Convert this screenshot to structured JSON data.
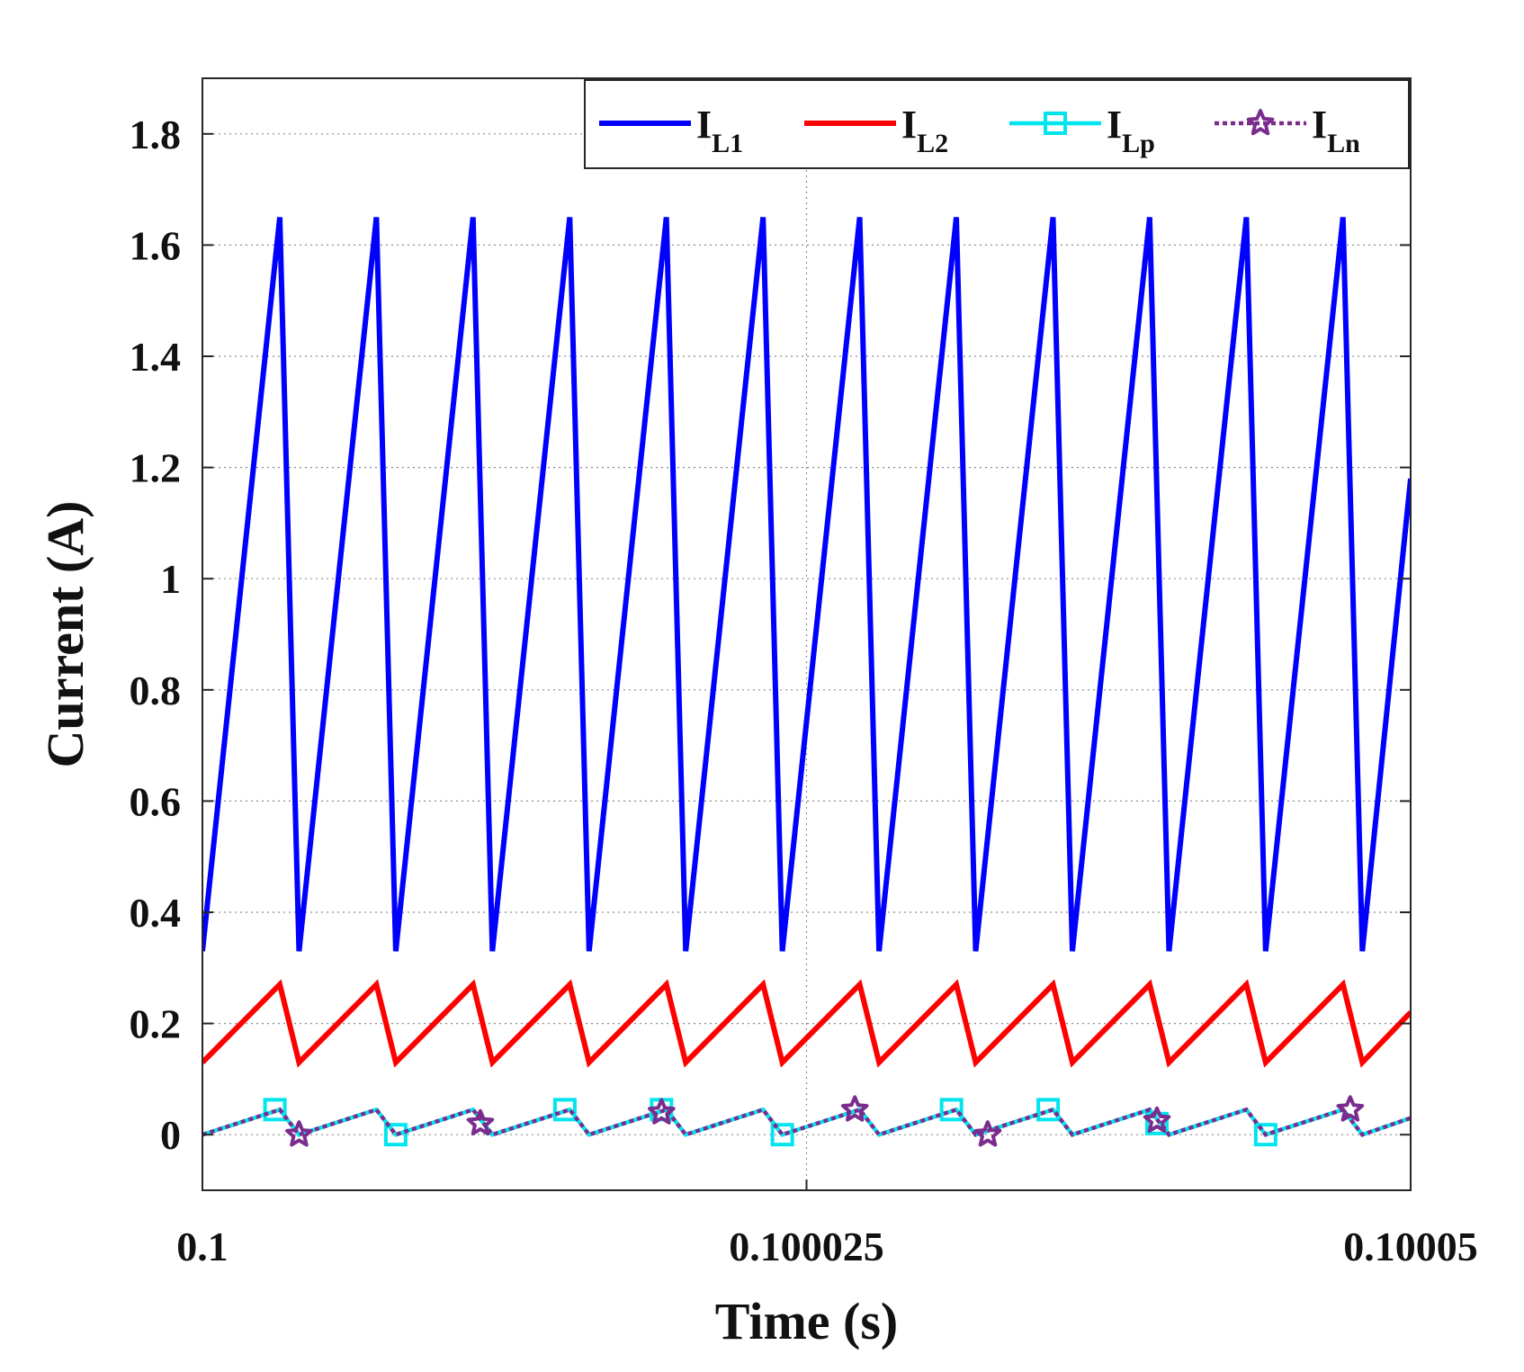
{
  "chart_data": {
    "type": "line",
    "title": "",
    "xlabel": "Time (s)",
    "ylabel": "Current (A)",
    "xlim": [
      0.1,
      0.10005
    ],
    "ylim": [
      -0.1,
      1.9
    ],
    "x_ticks": [
      {
        "value": 0.1,
        "label": "0.1"
      },
      {
        "value": 0.100025,
        "label": "0.100025"
      },
      {
        "value": 0.10005,
        "label": "0.10005"
      }
    ],
    "y_ticks": [
      {
        "value": 0,
        "label": "0"
      },
      {
        "value": 0.2,
        "label": "0.2"
      },
      {
        "value": 0.4,
        "label": "0.4"
      },
      {
        "value": 0.6,
        "label": "0.6"
      },
      {
        "value": 0.8,
        "label": "0.8"
      },
      {
        "value": 1.0,
        "label": "1"
      },
      {
        "value": 1.2,
        "label": "1.2"
      },
      {
        "value": 1.4,
        "label": "1.4"
      },
      {
        "value": 1.6,
        "label": "1.6"
      },
      {
        "value": 1.8,
        "label": "1.8"
      }
    ],
    "grid": true,
    "legend_position": "top-right",
    "series": [
      {
        "name": "I_L1",
        "label_main": "I",
        "label_sub": "L1",
        "color": "#0000ff",
        "line_style": "solid",
        "marker": "none",
        "x": [
          0.1,
          0.1000032,
          0.100004,
          0.1000072,
          0.100008,
          0.1000112,
          0.100012,
          0.1000152,
          0.100016,
          0.1000192,
          0.10002,
          0.1000232,
          0.100024,
          0.1000272,
          0.100028,
          0.1000312,
          0.100032,
          0.1000352,
          0.100036,
          0.1000392,
          0.10004,
          0.1000432,
          0.100044,
          0.1000472,
          0.100048,
          0.10005
        ],
        "y": [
          0.33,
          1.65,
          0.33,
          1.65,
          0.33,
          1.65,
          0.33,
          1.65,
          0.33,
          1.65,
          0.33,
          1.65,
          0.33,
          1.65,
          0.33,
          1.65,
          0.33,
          1.65,
          0.33,
          1.65,
          0.33,
          1.65,
          0.33,
          1.65,
          0.33,
          1.18
        ]
      },
      {
        "name": "I_L2",
        "label_main": "I",
        "label_sub": "L2",
        "color": "#ff0000",
        "line_style": "solid",
        "marker": "none",
        "x": [
          0.1,
          0.1000032,
          0.100004,
          0.1000072,
          0.100008,
          0.1000112,
          0.100012,
          0.1000152,
          0.100016,
          0.1000192,
          0.10002,
          0.1000232,
          0.100024,
          0.1000272,
          0.100028,
          0.1000312,
          0.100032,
          0.1000352,
          0.100036,
          0.1000392,
          0.10004,
          0.1000432,
          0.100044,
          0.1000472,
          0.100048,
          0.10005
        ],
        "y": [
          0.13,
          0.27,
          0.13,
          0.27,
          0.13,
          0.27,
          0.13,
          0.27,
          0.13,
          0.27,
          0.13,
          0.27,
          0.13,
          0.27,
          0.13,
          0.27,
          0.13,
          0.27,
          0.13,
          0.27,
          0.13,
          0.27,
          0.13,
          0.27,
          0.13,
          0.22
        ]
      },
      {
        "name": "I_Lp",
        "label_main": "I",
        "label_sub": "Lp",
        "color": "#00e5ee",
        "line_style": "solid",
        "marker": "square",
        "x": [
          0.1,
          0.1000032,
          0.100004,
          0.1000072,
          0.100008,
          0.1000112,
          0.100012,
          0.1000152,
          0.100016,
          0.1000192,
          0.10002,
          0.1000232,
          0.100024,
          0.1000272,
          0.100028,
          0.1000312,
          0.100032,
          0.1000352,
          0.100036,
          0.1000392,
          0.10004,
          0.1000432,
          0.100044,
          0.1000472,
          0.100048,
          0.10005
        ],
        "y": [
          0.0,
          0.045,
          0.0,
          0.045,
          0.0,
          0.045,
          0.0,
          0.045,
          0.0,
          0.045,
          0.0,
          0.045,
          0.0,
          0.045,
          0.0,
          0.045,
          0.0,
          0.045,
          0.0,
          0.045,
          0.0,
          0.045,
          0.0,
          0.045,
          0.0,
          0.03
        ],
        "marker_x": [
          0.100003,
          0.100008,
          0.100015,
          0.100019,
          0.100024,
          0.100031,
          0.100035,
          0.1000395,
          0.100044
        ],
        "marker_y": [
          0.045,
          0.0,
          0.045,
          0.045,
          0.0,
          0.045,
          0.045,
          0.02,
          0.0
        ]
      },
      {
        "name": "I_Ln",
        "label_main": "I",
        "label_sub": "Ln",
        "color": "#7b2d8e",
        "line_style": "dotted",
        "marker": "star",
        "x": [
          0.1,
          0.1000032,
          0.100004,
          0.1000072,
          0.100008,
          0.1000112,
          0.100012,
          0.1000152,
          0.100016,
          0.1000192,
          0.10002,
          0.1000232,
          0.100024,
          0.1000272,
          0.100028,
          0.1000312,
          0.100032,
          0.1000352,
          0.100036,
          0.1000392,
          0.10004,
          0.1000432,
          0.100044,
          0.1000472,
          0.100048,
          0.10005
        ],
        "y": [
          0.0,
          0.045,
          0.0,
          0.045,
          0.0,
          0.045,
          0.0,
          0.045,
          0.0,
          0.045,
          0.0,
          0.045,
          0.0,
          0.045,
          0.0,
          0.045,
          0.0,
          0.045,
          0.0,
          0.045,
          0.0,
          0.045,
          0.0,
          0.045,
          0.0,
          0.03
        ],
        "marker_x": [
          0.100004,
          0.1000115,
          0.100019,
          0.100027,
          0.1000325,
          0.1000395,
          0.1000475
        ],
        "marker_y": [
          0.0,
          0.02,
          0.04,
          0.045,
          0.0,
          0.025,
          0.045
        ]
      }
    ]
  }
}
